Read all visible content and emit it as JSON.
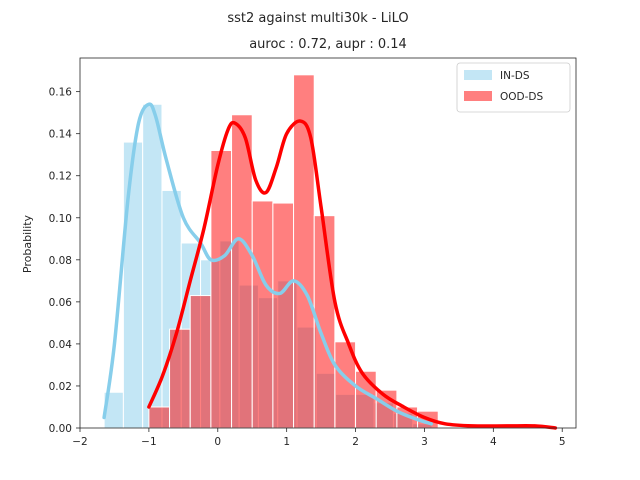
{
  "chart_data": {
    "type": "bar",
    "title": "sst2 against multi30k  - LiLO",
    "subtitle": "auroc : 0.72, aupr : 0.14",
    "xlabel": "",
    "ylabel": "Probability",
    "xlim": [
      -2.0,
      5.2
    ],
    "ylim": [
      0.0,
      0.176
    ],
    "xticks": [
      -2,
      -1,
      0,
      1,
      2,
      3,
      4,
      5
    ],
    "yticks": [
      0.0,
      0.02,
      0.04,
      0.06,
      0.08,
      0.1,
      0.12,
      0.14,
      0.16
    ],
    "xtick_labels": [
      "−2",
      "−1",
      "0",
      "1",
      "2",
      "3",
      "4",
      "5"
    ],
    "ytick_labels": [
      "0.00",
      "0.02",
      "0.04",
      "0.06",
      "0.08",
      "0.10",
      "0.12",
      "0.14",
      "0.16"
    ],
    "grid": false,
    "legend_position": "top-right",
    "series": [
      {
        "name": "IN-DS",
        "color": "#87ceeb",
        "bar_alpha": 0.5,
        "bin_edges": [
          -1.65,
          -1.37,
          -1.09,
          -0.81,
          -0.53,
          -0.25,
          0.03,
          0.31,
          0.59,
          0.87,
          1.15,
          1.43,
          1.71,
          1.99,
          2.27,
          2.55,
          2.83,
          3.11
        ],
        "values": [
          0.017,
          0.136,
          0.154,
          0.113,
          0.088,
          0.08,
          0.089,
          0.068,
          0.062,
          0.07,
          0.048,
          0.026,
          0.016,
          0.016,
          0.012,
          0.007,
          0.002
        ],
        "kde_x": [
          -1.65,
          -1.5,
          -1.3,
          -1.15,
          -1.0,
          -0.9,
          -0.75,
          -0.5,
          -0.25,
          -0.1,
          0.1,
          0.3,
          0.5,
          0.7,
          0.9,
          1.1,
          1.3,
          1.5,
          1.7,
          2.0,
          2.3,
          2.6,
          2.9,
          3.1
        ],
        "kde_y": [
          0.005,
          0.04,
          0.11,
          0.145,
          0.154,
          0.148,
          0.128,
          0.1,
          0.088,
          0.08,
          0.082,
          0.09,
          0.082,
          0.068,
          0.064,
          0.07,
          0.063,
          0.045,
          0.03,
          0.02,
          0.014,
          0.008,
          0.004,
          0.002
        ]
      },
      {
        "name": "OOD-DS",
        "color": "#ff0000",
        "bar_alpha": 0.5,
        "bin_edges": [
          -1.0,
          -0.7,
          -0.4,
          -0.1,
          0.2,
          0.5,
          0.8,
          1.1,
          1.4,
          1.7,
          2.0,
          2.3,
          2.6,
          2.9,
          3.2
        ],
        "values": [
          0.01,
          0.047,
          0.063,
          0.132,
          0.149,
          0.108,
          0.107,
          0.168,
          0.101,
          0.041,
          0.027,
          0.018,
          0.01,
          0.008
        ],
        "kde_x": [
          -1.0,
          -0.8,
          -0.6,
          -0.4,
          -0.2,
          0.0,
          0.15,
          0.25,
          0.4,
          0.55,
          0.7,
          0.85,
          1.0,
          1.2,
          1.35,
          1.5,
          1.7,
          1.9,
          2.1,
          2.4,
          2.7,
          3.0,
          3.3,
          3.7,
          4.2,
          4.6,
          4.9
        ],
        "kde_y": [
          0.01,
          0.025,
          0.045,
          0.07,
          0.095,
          0.125,
          0.142,
          0.145,
          0.138,
          0.118,
          0.112,
          0.124,
          0.14,
          0.146,
          0.138,
          0.105,
          0.06,
          0.04,
          0.026,
          0.016,
          0.01,
          0.005,
          0.002,
          0.001,
          0.001,
          0.001,
          0.0
        ]
      }
    ]
  }
}
